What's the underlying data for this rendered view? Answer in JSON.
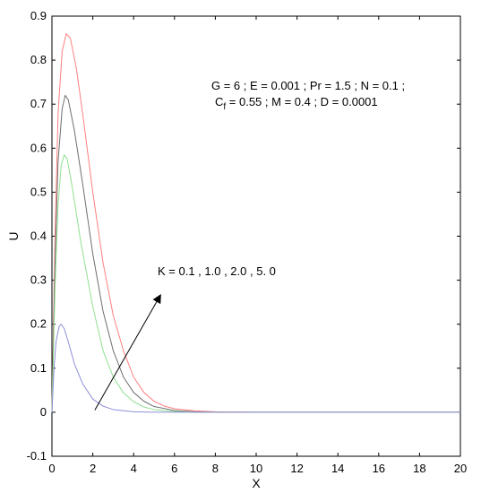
{
  "chart_data": {
    "type": "line",
    "title": "",
    "xlabel": "X",
    "ylabel": "U",
    "xlim": [
      0,
      20
    ],
    "ylim": [
      -0.1,
      0.9
    ],
    "x_ticks": [
      0,
      2,
      4,
      6,
      8,
      10,
      12,
      14,
      16,
      18,
      20
    ],
    "y_ticks": [
      -0.1,
      0,
      0.1,
      0.2,
      0.3,
      0.4,
      0.5,
      0.6,
      0.7,
      0.8,
      0.9
    ],
    "grid": false,
    "legend": "none",
    "series": [
      {
        "color": "#ff7f7f",
        "points": [
          [
            0,
            0
          ],
          [
            0.15,
            0.4
          ],
          [
            0.3,
            0.68
          ],
          [
            0.5,
            0.82
          ],
          [
            0.7,
            0.86
          ],
          [
            0.9,
            0.85
          ],
          [
            1.2,
            0.78
          ],
          [
            1.5,
            0.68
          ],
          [
            2,
            0.5
          ],
          [
            2.5,
            0.34
          ],
          [
            3,
            0.22
          ],
          [
            3.5,
            0.14
          ],
          [
            4,
            0.08
          ],
          [
            4.5,
            0.045
          ],
          [
            5,
            0.025
          ],
          [
            5.5,
            0.014
          ],
          [
            6,
            0.008
          ],
          [
            7,
            0.003
          ],
          [
            8,
            0.001
          ],
          [
            10,
            0
          ],
          [
            20,
            0
          ]
        ]
      },
      {
        "color": "#6e6e6e",
        "points": [
          [
            0,
            0
          ],
          [
            0.15,
            0.34
          ],
          [
            0.3,
            0.57
          ],
          [
            0.5,
            0.69
          ],
          [
            0.65,
            0.72
          ],
          [
            0.8,
            0.71
          ],
          [
            1.1,
            0.64
          ],
          [
            1.5,
            0.52
          ],
          [
            2,
            0.36
          ],
          [
            2.5,
            0.23
          ],
          [
            3,
            0.14
          ],
          [
            3.5,
            0.08
          ],
          [
            4,
            0.045
          ],
          [
            4.5,
            0.025
          ],
          [
            5,
            0.013
          ],
          [
            6,
            0.004
          ],
          [
            7,
            0.001
          ],
          [
            8,
            0
          ],
          [
            20,
            0
          ]
        ]
      },
      {
        "color": "#8fe08f",
        "points": [
          [
            0,
            0
          ],
          [
            0.15,
            0.28
          ],
          [
            0.3,
            0.47
          ],
          [
            0.45,
            0.56
          ],
          [
            0.6,
            0.585
          ],
          [
            0.75,
            0.575
          ],
          [
            1,
            0.51
          ],
          [
            1.4,
            0.39
          ],
          [
            2,
            0.24
          ],
          [
            2.5,
            0.14
          ],
          [
            3,
            0.08
          ],
          [
            3.5,
            0.044
          ],
          [
            4,
            0.024
          ],
          [
            4.5,
            0.012
          ],
          [
            5,
            0.006
          ],
          [
            6,
            0.002
          ],
          [
            7,
            0
          ],
          [
            20,
            0
          ]
        ]
      },
      {
        "color": "#8f8fd8",
        "points": [
          [
            0,
            0
          ],
          [
            0.1,
            0.1
          ],
          [
            0.2,
            0.16
          ],
          [
            0.35,
            0.195
          ],
          [
            0.45,
            0.2
          ],
          [
            0.6,
            0.19
          ],
          [
            0.8,
            0.16
          ],
          [
            1.1,
            0.11
          ],
          [
            1.5,
            0.065
          ],
          [
            2,
            0.03
          ],
          [
            2.5,
            0.014
          ],
          [
            3,
            0.006
          ],
          [
            4,
            0.001
          ],
          [
            5,
            0
          ],
          [
            20,
            0
          ]
        ]
      }
    ],
    "annotations": {
      "params_line1": "G = 6 ;  E = 0.001 ; Pr = 1.5 ; N = 0.1 ;",
      "params_line2_prefix": "C",
      "params_line2_sub": "f",
      "params_line2_rest": " = 0.55 ; M = 0.4 ; D = 0.0001",
      "k_label": "K = 0.1 , 1.0 , 2.0 , 5. 0"
    },
    "arrow": {
      "from": [
        2.1,
        0.005
      ],
      "to": [
        5.3,
        0.265
      ]
    }
  }
}
